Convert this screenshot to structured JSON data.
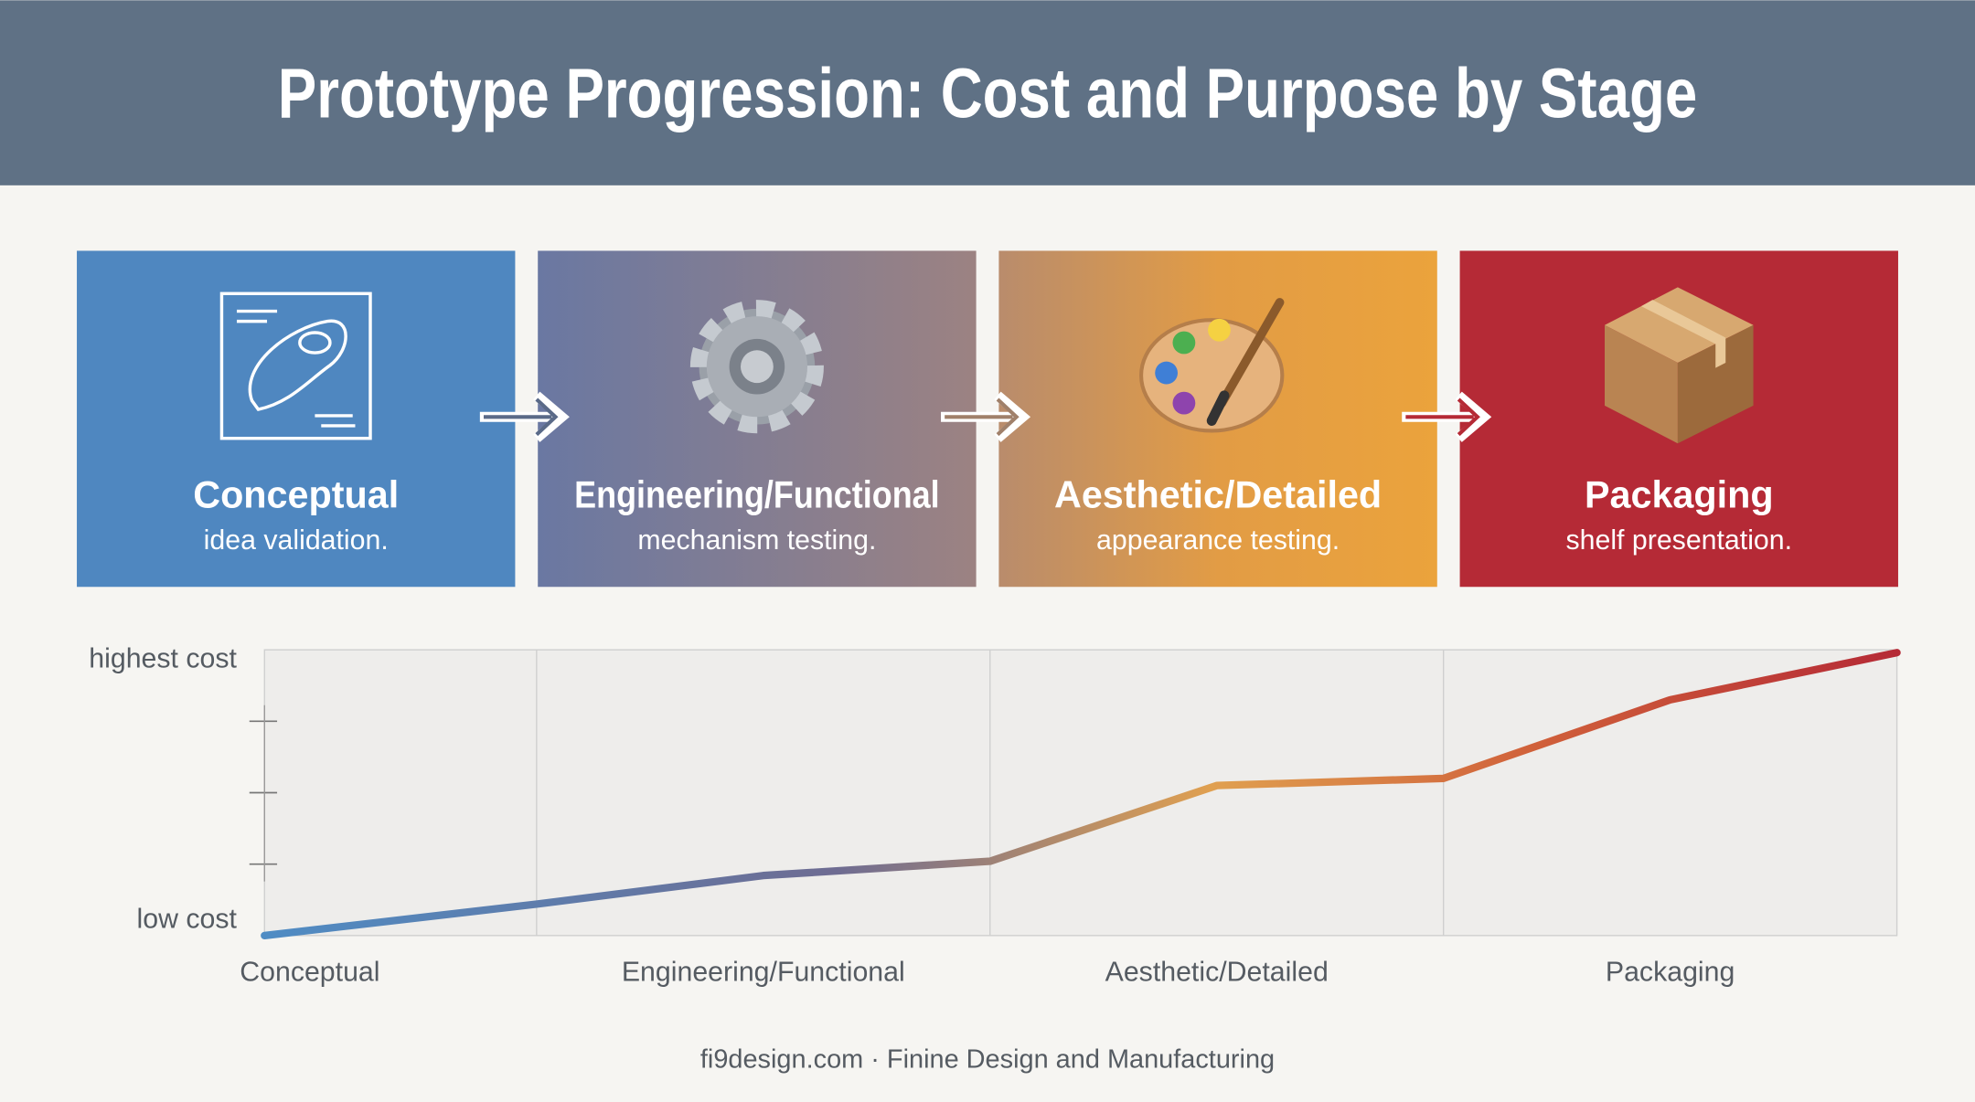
{
  "header": {
    "title": "Prototype Progression: Cost and Purpose by Stage"
  },
  "stages": [
    {
      "name": "Conceptual",
      "description": "idea validation.",
      "color": "#4f87c0"
    },
    {
      "name": "Engineering/Functional",
      "description": "mechanism testing.",
      "color": "#7a7894"
    },
    {
      "name": "Aesthetic/Detailed",
      "description": "appearance testing.",
      "color": "#e29c45"
    },
    {
      "name": "Packaging",
      "description": "shelf presentation.",
      "color": "#b52a36"
    }
  ],
  "chart_data": {
    "type": "line",
    "xlim": [
      -0.1,
      3.5
    ],
    "xticks": [
      {
        "value": 0,
        "label": "Conceptual"
      },
      {
        "value": 1,
        "label": "Engineering/Functional"
      },
      {
        "value": 2,
        "label": "Aesthetic/Detailed"
      },
      {
        "value": 3,
        "label": "Packaging"
      }
    ],
    "xgrid": [
      0.5,
      1.5,
      2.5
    ],
    "ylim": [
      0,
      4
    ],
    "yticks": [
      {
        "value": 0,
        "label": "low cost"
      },
      1,
      2,
      3,
      {
        "value": 4,
        "label": "highest cost"
      }
    ],
    "series": [
      {
        "x": [
          -0.1,
          0.5,
          1,
          1.5,
          2,
          2.5,
          3,
          3.5
        ],
        "values": [
          0,
          0.44,
          0.84,
          1.04,
          2.1,
          2.2,
          3.3,
          3.96
        ]
      }
    ]
  },
  "footer": "fi9design.com · Finine Design and Manufacturing"
}
